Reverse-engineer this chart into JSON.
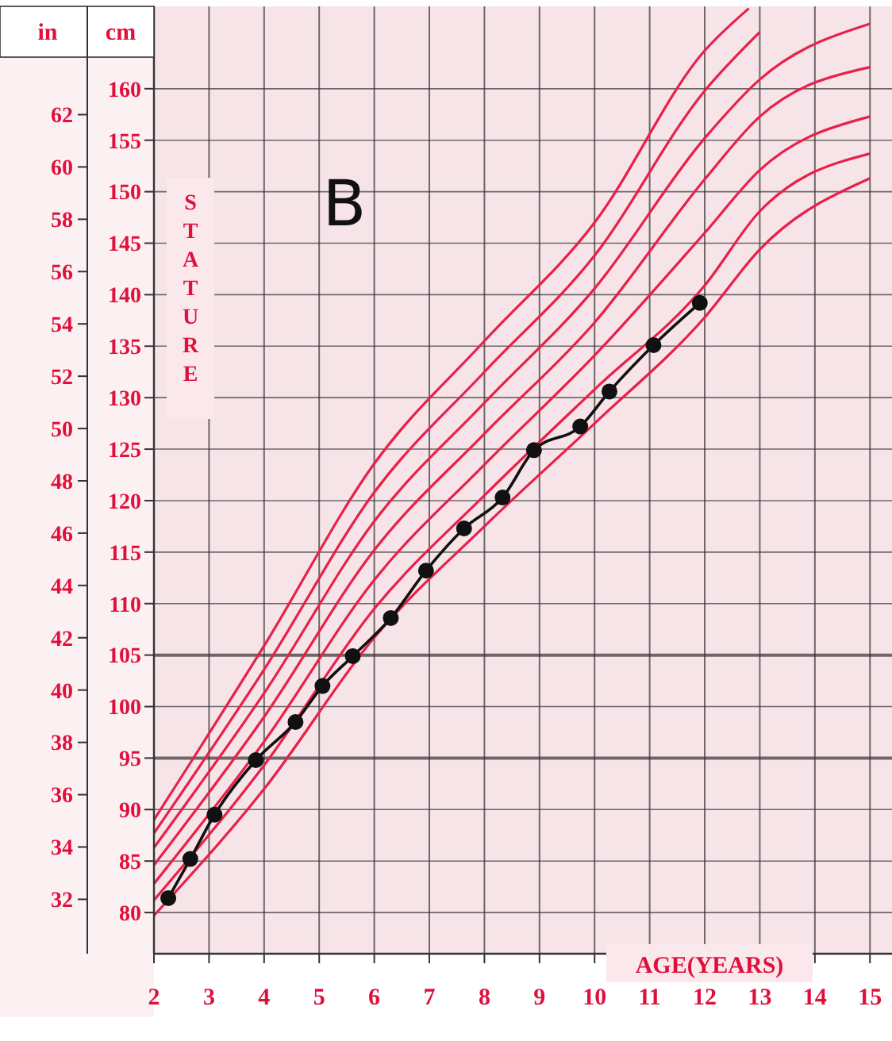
{
  "chart_data": {
    "type": "line",
    "title": "B",
    "xlabel": "AGE(YEARS)",
    "ylabel": "cm",
    "y2label": "in",
    "annotations": [
      "STATURE"
    ],
    "xlim": [
      2,
      15.4
    ],
    "xticks": [
      2,
      3,
      4,
      5,
      6,
      7,
      8,
      9,
      10,
      11,
      12,
      13,
      14,
      15
    ],
    "ylim": [
      76,
      168
    ],
    "yticks": [
      80,
      85,
      90,
      95,
      100,
      105,
      110,
      115,
      120,
      125,
      130,
      135,
      140,
      145,
      150,
      155,
      160
    ],
    "y2lim": [
      29.92,
      66.14
    ],
    "y2ticks": [
      32,
      34,
      36,
      38,
      40,
      42,
      44,
      46,
      48,
      50,
      52,
      54,
      56,
      58,
      60,
      62
    ],
    "grid": true,
    "series": [
      {
        "color": "#e8204a",
        "marker": "none",
        "x": [
          2,
          4,
          6,
          8,
          10,
          12,
          13,
          15
        ],
        "values": [
          79.7,
          92.0,
          106.7,
          117.5,
          127.5,
          137.8,
          144.4,
          151.3
        ]
      },
      {
        "color": "#e8204a",
        "marker": "none",
        "x": [
          2,
          4,
          6,
          8,
          10,
          12,
          13,
          15
        ],
        "values": [
          81.2,
          94.3,
          109.5,
          120.5,
          130.8,
          140.9,
          148.1,
          153.7
        ]
      },
      {
        "color": "#e8204a",
        "marker": "none",
        "x": [
          2,
          4,
          6,
          8,
          10,
          12,
          13,
          15
        ],
        "values": [
          82.8,
          96.6,
          112.3,
          123.5,
          134.1,
          146.0,
          152.1,
          157.3
        ]
      },
      {
        "color": "#e8204a",
        "marker": "none",
        "x": [
          2,
          4,
          6,
          8,
          10,
          12,
          13,
          15
        ],
        "values": [
          84.6,
          99.0,
          115.2,
          126.5,
          137.3,
          151.2,
          157.3,
          162.1
        ]
      },
      {
        "color": "#e8204a",
        "marker": "none",
        "x": [
          2,
          4,
          6,
          8,
          10,
          12,
          13,
          15
        ],
        "values": [
          86.3,
          101.3,
          118.0,
          129.5,
          140.6,
          155.2,
          160.9,
          166.3
        ]
      },
      {
        "color": "#e8204a",
        "marker": "none",
        "x": [
          2,
          4,
          6,
          8,
          10,
          12,
          13
        ],
        "values": [
          87.7,
          103.6,
          120.8,
          132.5,
          143.8,
          159.8,
          165.5
        ]
      },
      {
        "color": "#e8204a",
        "marker": "none",
        "x": [
          2,
          4,
          6,
          8,
          10,
          12,
          12.8
        ],
        "values": [
          89.0,
          105.9,
          123.6,
          135.5,
          147.0,
          163.7,
          167.8
        ]
      },
      {
        "color": "#111111",
        "marker": "circle",
        "x": [
          2.26,
          2.66,
          3.1,
          3.85,
          4.57,
          5.06,
          5.61,
          6.3,
          6.94,
          7.63,
          8.33,
          8.9,
          9.74,
          10.27,
          11.07,
          11.91
        ],
        "values": [
          81.4,
          85.2,
          89.5,
          94.8,
          98.5,
          102.0,
          104.9,
          108.6,
          113.2,
          117.3,
          120.3,
          124.9,
          127.2,
          130.6,
          135.1,
          139.2
        ]
      }
    ]
  }
}
